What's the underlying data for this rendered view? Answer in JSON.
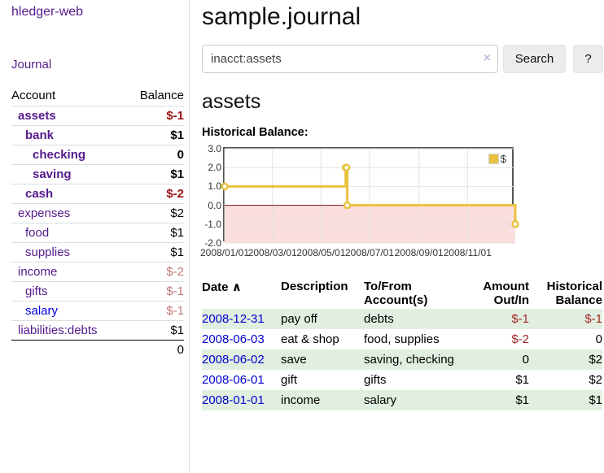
{
  "app": {
    "brand": "hledger-web",
    "nav_journal": "Journal"
  },
  "header": {
    "title": "sample.journal"
  },
  "search": {
    "value": "inacct:assets",
    "clear_icon": "×",
    "button_label": "Search",
    "help_label": "?"
  },
  "sidebar": {
    "header": {
      "account": "Account",
      "balance": "Balance"
    },
    "accounts": [
      {
        "name": "assets",
        "balance": "$-1"
      },
      {
        "name": "bank",
        "balance": "$1"
      },
      {
        "name": "checking",
        "balance": "0"
      },
      {
        "name": "saving",
        "balance": "$1"
      },
      {
        "name": "cash",
        "balance": "$-2"
      },
      {
        "name": "expenses",
        "balance": "$2"
      },
      {
        "name": "food",
        "balance": "$1"
      },
      {
        "name": "supplies",
        "balance": "$1"
      },
      {
        "name": "income",
        "balance": "$-2"
      },
      {
        "name": "gifts",
        "balance": "$-1"
      },
      {
        "name": "salary",
        "balance": "$-1"
      },
      {
        "name": "liabilities:debts",
        "balance": "$1"
      }
    ],
    "total": "0"
  },
  "account_page": {
    "title": "assets",
    "chart_title": "Historical Balance:"
  },
  "chart_data": {
    "type": "line",
    "step": true,
    "title": "Historical Balance:",
    "series": [
      {
        "name": "$",
        "color": "#e8c240",
        "points": [
          [
            "2008-01-01",
            1
          ],
          [
            "2008-06-01",
            2
          ],
          [
            "2008-06-02",
            2
          ],
          [
            "2008-06-03",
            0
          ],
          [
            "2008-12-31",
            -1
          ]
        ]
      }
    ],
    "x_ticks": [
      "2008/01/01",
      "2008/03/01",
      "2008/05/01",
      "2008/07/01",
      "2008/09/01",
      "2008/11/01"
    ],
    "y_ticks": [
      "3.0",
      "2.0",
      "1.0",
      "0.0",
      "-1.0",
      "-2.0"
    ],
    "xlim": [
      "2008-01-01",
      "2008-12-31"
    ],
    "ylim": [
      -2,
      3
    ],
    "grid": true,
    "legend_position": "top-right",
    "negative_fill": "#fbdede",
    "zero_line_color": "#7d1515",
    "grid_color": "#e2e2e2"
  },
  "register": {
    "headers": {
      "date": "Date",
      "sort_icon": "∧",
      "description": "Description",
      "accounts": "To/From Account(s)",
      "amount": "Amount Out/In",
      "balance": "Historical Balance"
    },
    "rows": [
      {
        "date": "2008-12-31",
        "description": "pay off",
        "accounts": "debts",
        "amount": "$-1",
        "balance": "$-1"
      },
      {
        "date": "2008-06-03",
        "description": "eat & shop",
        "accounts": "food, supplies",
        "amount": "$-2",
        "balance": "0"
      },
      {
        "date": "2008-06-02",
        "description": "save",
        "accounts": "saving, checking",
        "amount": "0",
        "balance": "$2"
      },
      {
        "date": "2008-06-01",
        "description": "gift",
        "accounts": "gifts",
        "amount": "$1",
        "balance": "$2"
      },
      {
        "date": "2008-01-01",
        "description": "income",
        "accounts": "salary",
        "amount": "$1",
        "balance": "$1"
      }
    ]
  }
}
